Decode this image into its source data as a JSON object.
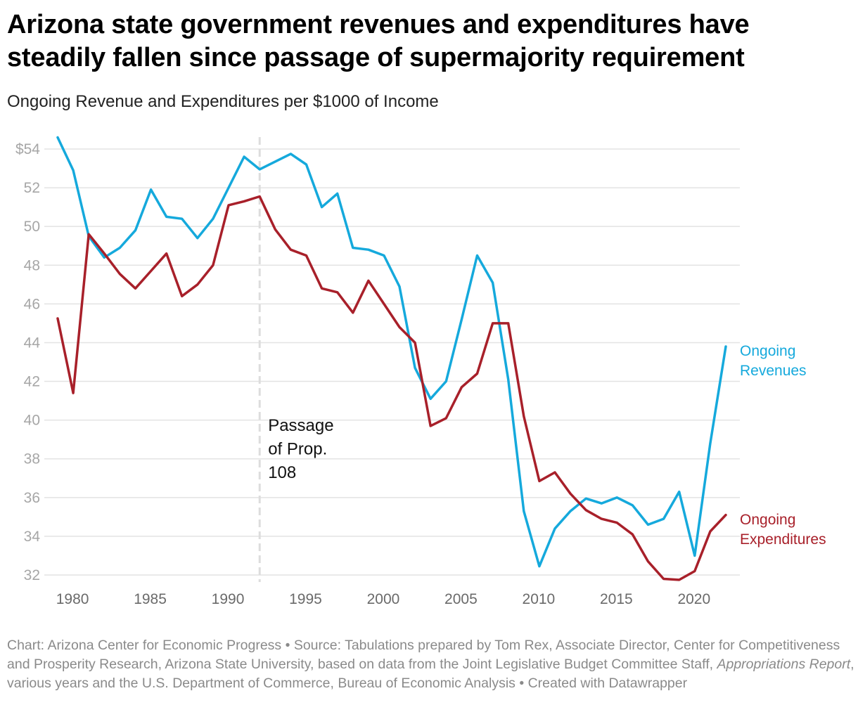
{
  "header": {
    "title": "Arizona state government revenues and expenditures have steadily fallen since passage of supermajority requirement",
    "subtitle": "Ongoing Revenue and Expenditures per $1000 of Income"
  },
  "footer": {
    "part1": "Chart: Arizona Center for Economic Progress • Source: Tabulations prepared by Tom Rex, Associate Director, Center for Competitiveness and Prosperity Research, Arizona State University, based on data from the Joint Legislative Budget Committee Staff, ",
    "italic": "Appropriations Report",
    "part2": ", various years and the U.S. Department of Commerce, Bureau of Economic Analysis • Created with Datawrapper"
  },
  "chart_data": {
    "type": "line",
    "title": "Arizona state government revenues and expenditures have steadily fallen since passage of supermajority requirement",
    "subtitle": "Ongoing Revenue and Expenditures per $1000 of Income",
    "xlabel": "",
    "ylabel": "",
    "xlim": [
      1979,
      2022
    ],
    "ylim": [
      32,
      54
    ],
    "grid": true,
    "y_ticks": [
      54,
      52,
      50,
      48,
      46,
      44,
      42,
      40,
      38,
      36,
      34,
      32
    ],
    "y_tick_labels": [
      "$54",
      "52",
      "50",
      "48",
      "46",
      "44",
      "42",
      "40",
      "38",
      "36",
      "34",
      "32"
    ],
    "x_ticks": [
      1980,
      1985,
      1990,
      1995,
      2000,
      2005,
      2010,
      2015,
      2020
    ],
    "x_tick_labels": [
      "1980",
      "1985",
      "1990",
      "1995",
      "2000",
      "2005",
      "2010",
      "2015",
      "2020"
    ],
    "x": [
      1979,
      1980,
      1981,
      1982,
      1983,
      1984,
      1985,
      1986,
      1987,
      1988,
      1989,
      1990,
      1991,
      1992,
      1993,
      1994,
      1995,
      1996,
      1997,
      1998,
      1999,
      2000,
      2001,
      2002,
      2003,
      2004,
      2005,
      2006,
      2007,
      2008,
      2009,
      2010,
      2011,
      2012,
      2013,
      2014,
      2015,
      2016,
      2017,
      2018,
      2019,
      2020,
      2021,
      2022
    ],
    "series": [
      {
        "name": "Ongoing Revenues",
        "label_lines": [
          "Ongoing",
          "Revenues"
        ],
        "color": "#15a9dc",
        "values": [
          54.6,
          52.9,
          49.5,
          48.4,
          48.9,
          49.8,
          51.9,
          50.5,
          50.4,
          49.4,
          50.4,
          52.0,
          53.6,
          52.95,
          53.35,
          53.75,
          53.2,
          51.0,
          51.7,
          48.9,
          48.8,
          48.5,
          46.9,
          42.7,
          41.1,
          42.0,
          45.2,
          48.5,
          47.1,
          42.1,
          35.3,
          32.45,
          34.4,
          35.3,
          35.95,
          35.7,
          36.0,
          35.6,
          34.6,
          34.9,
          36.3,
          33.0,
          38.8,
          43.8
        ]
      },
      {
        "name": "Ongoing Expenditures",
        "label_lines": [
          "Ongoing",
          "Expenditures"
        ],
        "color": "#a8202a",
        "values": [
          45.25,
          41.4,
          49.6,
          48.6,
          47.55,
          46.8,
          47.7,
          48.6,
          46.4,
          47.0,
          48.0,
          51.1,
          51.3,
          51.55,
          49.85,
          48.8,
          48.5,
          46.8,
          46.6,
          45.55,
          47.2,
          46.0,
          44.8,
          44.0,
          39.7,
          40.1,
          41.7,
          42.4,
          45.0,
          45.0,
          40.2,
          36.85,
          37.3,
          36.2,
          35.35,
          34.9,
          34.7,
          34.1,
          32.7,
          31.8,
          31.75,
          32.2,
          34.25,
          35.1
        ]
      }
    ],
    "annotations": [
      {
        "type": "vertical-line",
        "x": 1992,
        "style": "dashed",
        "text_lines": [
          "Passage",
          "of Prop.",
          "108"
        ]
      }
    ],
    "legend": "direct-labels-right"
  }
}
